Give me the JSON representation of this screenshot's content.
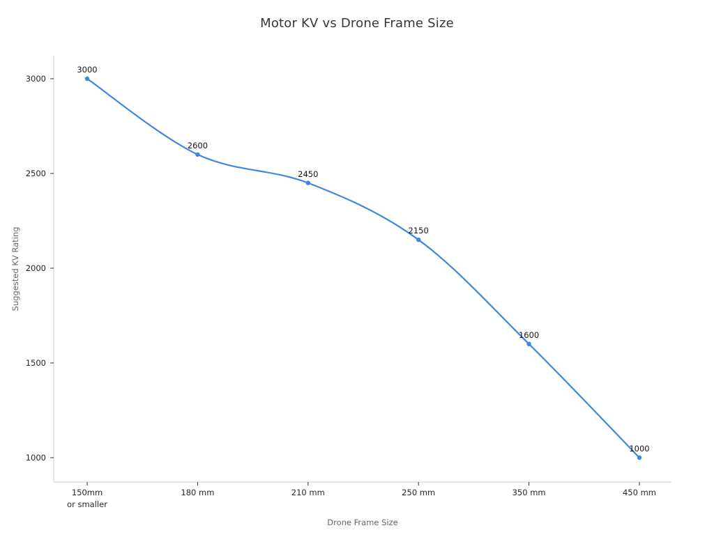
{
  "title": "Motor KV vs Drone Frame Size",
  "chart_data": {
    "type": "line",
    "title": "Motor KV vs Drone Frame Size",
    "xlabel": "Drone Frame Size",
    "ylabel": "Suggested KV Rating",
    "categories": [
      "150mm\nor smaller",
      "180 mm",
      "210 mm",
      "250 mm",
      "350 mm",
      "450 mm"
    ],
    "values": [
      3000,
      2600,
      2450,
      2150,
      1600,
      1000
    ],
    "point_labels": [
      "3000",
      "2600",
      "2450",
      "2150",
      "1600",
      "1000"
    ],
    "yticks": [
      1000,
      1500,
      2000,
      2500,
      3000
    ],
    "ylim": [
      870,
      3120
    ],
    "grid": "off",
    "legend": "none",
    "line_style": "smooth-spline-with-markers"
  },
  "colors": {
    "line": "#3d87e1",
    "marker": "#3d87e1",
    "spine": "#cccccc",
    "tick_mark": "#333333",
    "tick_label": "#262626",
    "axis_title": "#666666",
    "chart_title": "#363636",
    "background": "#ffffff"
  }
}
